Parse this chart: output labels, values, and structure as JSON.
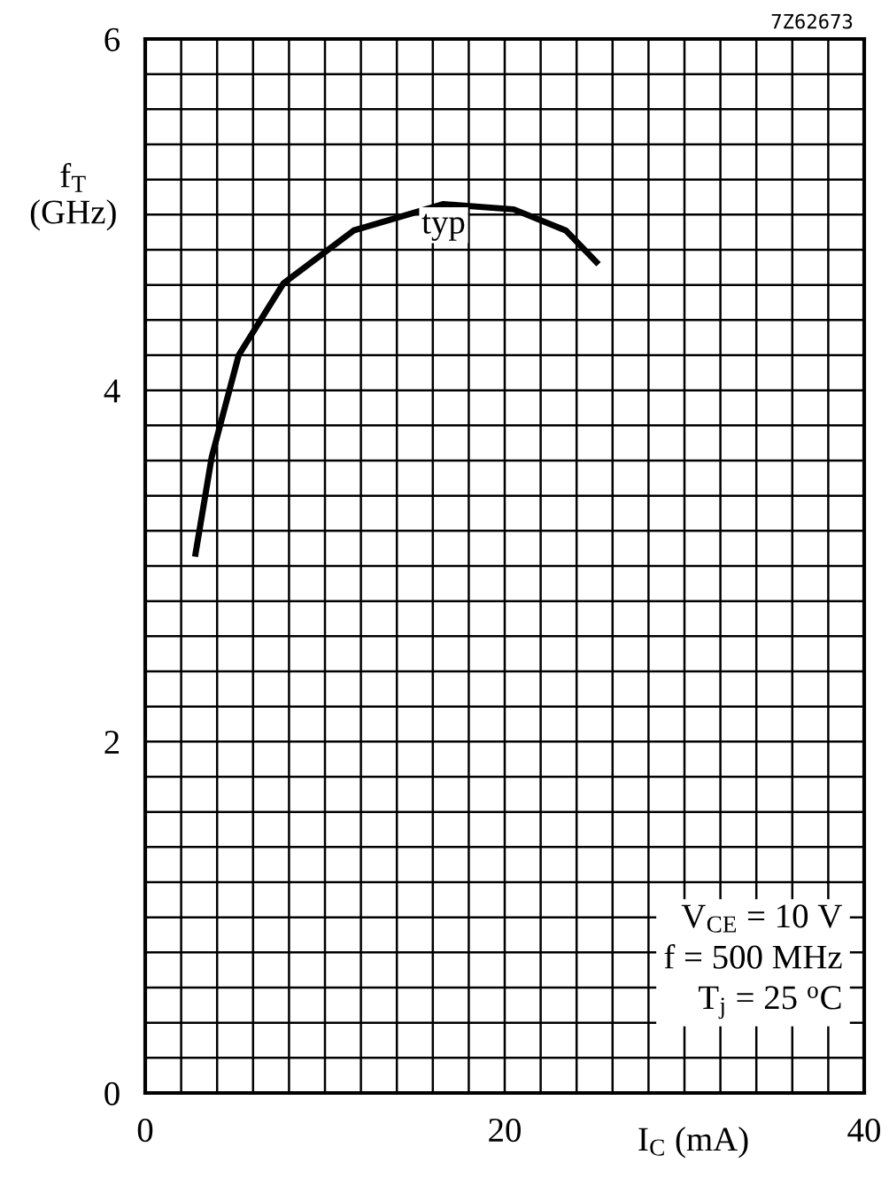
{
  "chart_data": {
    "type": "line",
    "x": [
      2.8,
      3.7,
      5.2,
      7.7,
      11.6,
      16.6,
      20.5,
      23.4,
      25.1
    ],
    "series": [
      {
        "color": "#000000",
        "values": [
          3.07,
          3.62,
          4.2,
          4.61,
          4.91,
          5.06,
          5.03,
          4.91,
          4.73
        ]
      }
    ],
    "xlim": [
      0,
      40
    ],
    "ylim": [
      0,
      6
    ],
    "xticks": [
      0,
      {
        "value": 2,
        "label": null
      },
      {
        "value": 4,
        "label": null
      },
      {
        "value": 6,
        "label": null
      },
      {
        "value": 8,
        "label": null
      },
      {
        "value": 10,
        "label": null
      },
      {
        "value": 12,
        "label": null
      },
      {
        "value": 14,
        "label": null
      },
      {
        "value": 16,
        "label": null
      },
      {
        "value": 18,
        "label": null
      },
      20,
      {
        "value": 22,
        "label": null
      },
      {
        "value": 24,
        "label": null
      },
      {
        "value": 26,
        "label": null
      },
      {
        "value": 28,
        "label": null
      },
      {
        "value": 30,
        "label": null
      },
      {
        "value": 32,
        "label": null
      },
      {
        "value": 34,
        "label": null
      },
      {
        "value": 36,
        "label": null
      },
      {
        "value": 38,
        "label": null
      },
      40
    ],
    "yticks": [
      0,
      {
        "value": 0.2,
        "label": null
      },
      {
        "value": 0.4,
        "label": null
      },
      {
        "value": 0.6,
        "label": null
      },
      {
        "value": 0.8,
        "label": null
      },
      {
        "value": 1,
        "label": null
      },
      {
        "value": 1.2,
        "label": null
      },
      {
        "value": 1.4,
        "label": null
      },
      {
        "value": 1.6,
        "label": null
      },
      {
        "value": 1.8,
        "label": null
      },
      2,
      {
        "value": 2.2,
        "label": null
      },
      {
        "value": 2.4,
        "label": null
      },
      {
        "value": 2.6,
        "label": null
      },
      {
        "value": 2.8,
        "label": null
      },
      {
        "value": 3,
        "label": null
      },
      {
        "value": 3.2,
        "label": null
      },
      {
        "value": 3.4,
        "label": null
      },
      {
        "value": 3.6,
        "label": null
      },
      {
        "value": 3.8,
        "label": null
      },
      4,
      {
        "value": 4.2,
        "label": null
      },
      {
        "value": 4.4,
        "label": null
      },
      {
        "value": 4.6,
        "label": null
      },
      {
        "value": 4.8,
        "label": null
      },
      {
        "value": 5,
        "label": null
      },
      {
        "value": 5.2,
        "label": null
      },
      {
        "value": 5.4,
        "label": null
      },
      {
        "value": 5.6,
        "label": null
      },
      {
        "value": 5.8,
        "label": null
      },
      6
    ],
    "grid": true,
    "marker": "none",
    "line_style": "solid",
    "xlabel": "I$_{C}$ (mA)",
    "ylabel": "f$_{T}$\n(GHz)",
    "annotations": [
      {
        "text": "typ",
        "x": 16.6,
        "y": 5.06
      },
      "7Z62673",
      "V$_{CE}$ = 10 V\nf = 500 MHz\nT$_{j}$ = 25 $^{o}$C"
    ]
  }
}
